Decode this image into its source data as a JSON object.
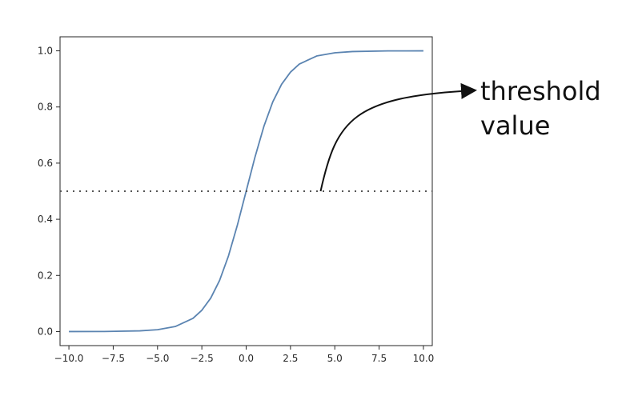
{
  "chart_data": {
    "type": "line",
    "title": "",
    "xlabel": "",
    "ylabel": "",
    "xlim": [
      -10.5,
      10.5
    ],
    "ylim": [
      -0.05,
      1.05
    ],
    "grid": false,
    "x_ticks": [
      -10.0,
      -7.5,
      -5.0,
      -2.5,
      0.0,
      2.5,
      5.0,
      7.5,
      10.0
    ],
    "x_tick_labels": [
      "−10.0",
      "−7.5",
      "−5.0",
      "−2.5",
      "0.0",
      "2.5",
      "5.0",
      "7.5",
      "10.0"
    ],
    "y_ticks": [
      0.0,
      0.2,
      0.4,
      0.6,
      0.8,
      1.0
    ],
    "y_tick_labels": [
      "0.0",
      "0.2",
      "0.4",
      "0.6",
      "0.8",
      "1.0"
    ],
    "series": [
      {
        "color": "#5b84b1",
        "style": "solid",
        "x": [
          -10,
          -8,
          -6,
          -5,
          -4,
          -3,
          -2.5,
          -2,
          -1.5,
          -1,
          -0.5,
          0,
          0.5,
          1,
          1.5,
          2,
          2.5,
          3,
          4,
          5,
          6,
          8,
          10
        ],
        "y": [
          5e-05,
          0.0003,
          0.0025,
          0.0067,
          0.018,
          0.047,
          0.076,
          0.119,
          0.182,
          0.269,
          0.378,
          0.5,
          0.622,
          0.731,
          0.818,
          0.881,
          0.924,
          0.953,
          0.982,
          0.993,
          0.9975,
          0.9997,
          0.99995
        ]
      },
      {
        "color": "#555555",
        "style": "dotted",
        "x": [
          -10.5,
          10.5
        ],
        "y": [
          0.5,
          0.5
        ]
      }
    ],
    "annotations": [
      {
        "text_lines": [
          "threshold",
          "value"
        ],
        "point": [
          4.2,
          0.5
        ],
        "color": "#111111"
      }
    ]
  }
}
